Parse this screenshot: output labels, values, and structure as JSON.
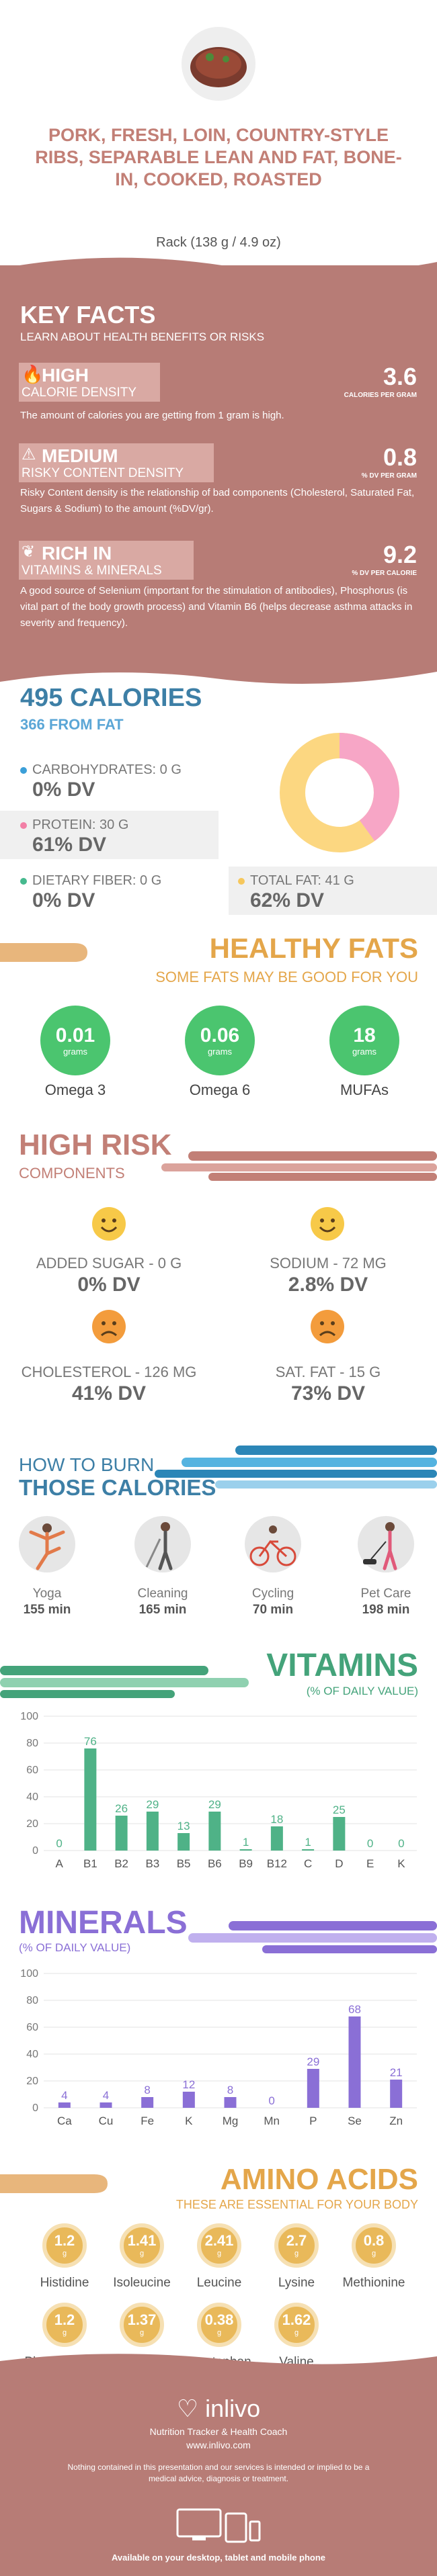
{
  "header": {
    "title": "PORK, FRESH, LOIN, COUNTRY-STYLE RIBS, SEPARABLE LEAN AND FAT, BONE-IN, COOKED, ROASTED",
    "serving": "Rack (138 g / 4.9 oz)"
  },
  "key_facts": {
    "title": "KEY FACTS",
    "subtitle": "LEARN ABOUT HEALTH BENEFITS OR RISKS",
    "items": [
      {
        "level": "HIGH",
        "category": "CALORIE DENSITY",
        "value": "3.6",
        "unit": "CALORIES PER GRAM",
        "description": "The amount of calories you are getting from 1 gram is high.",
        "icon": "fire-icon"
      },
      {
        "level": "MEDIUM",
        "category": "RISKY CONTENT DENSITY",
        "value": "0.8",
        "unit": "% DV PER GRAM",
        "description": "Risky Content density is the relationship of bad components (Cholesterol, Saturated Fat, Sugars & Sodium) to the amount (%DV/gr).",
        "icon": "warning-icon"
      },
      {
        "level": "RICH IN",
        "category": "VITAMINS & MINERALS",
        "value": "9.2",
        "unit": "% DV PER CALORIE",
        "description": "A good source of Selenium (important for the stimulation of antibodies), Phosphorus (is vital part of the body growth process) and Vitamin B6 (helps decrease asthma attacks in severity and frequency).",
        "icon": "leaf-icon"
      }
    ]
  },
  "calories": {
    "title": "495 CALORIES",
    "from_fat": "366 FROM FAT",
    "macros": [
      {
        "label": "CARBOHYDRATES: 0 g",
        "dv": "0% DV",
        "color": "#3b9fd8"
      },
      {
        "label": "PROTEIN: 30 g",
        "dv": "61% DV",
        "color": "#f27fa6"
      },
      {
        "label": "DIETARY FIBER: 0 g",
        "dv": "0% DV",
        "color": "#46b98e"
      },
      {
        "label": "TOTAL FAT: 41 g",
        "dv": "62% DV",
        "color": "#f6c75c"
      }
    ],
    "donut": {
      "protein_color": "#f7a6c6",
      "fat_color": "#fcd781",
      "protein_fraction": 0.4,
      "fat_fraction": 0.6
    }
  },
  "healthy_fats": {
    "title": "HEALTHY FATS",
    "subtitle": "SOME FATS MAY BE GOOD FOR YOU",
    "items": [
      {
        "value": "0.01",
        "unit": "grams",
        "name": "Omega 3"
      },
      {
        "value": "0.06",
        "unit": "grams",
        "name": "Omega 6"
      },
      {
        "value": "18",
        "unit": "grams",
        "name": "MUFAs"
      }
    ]
  },
  "high_risk": {
    "title": "HIGH RISK",
    "subtitle": "COMPONENTS",
    "items": [
      {
        "label": "ADDED SUGAR - 0 g",
        "dv": "0% DV",
        "mood": "happy"
      },
      {
        "label": "SODIUM - 72 mg",
        "dv": "2.8% DV",
        "mood": "happy"
      },
      {
        "label": "CHOLESTEROL - 126 mg",
        "dv": "41% DV",
        "mood": "sad"
      },
      {
        "label": "SAT. FAT - 15 g",
        "dv": "73% DV",
        "mood": "sad"
      }
    ]
  },
  "burn": {
    "title_line1": "HOW TO BURN",
    "title_line2": "THOSE CALORIES",
    "activities": [
      {
        "name": "Yoga",
        "minutes": "155 min",
        "icon": "yoga-icon"
      },
      {
        "name": "Cleaning",
        "minutes": "165 min",
        "icon": "cleaning-icon"
      },
      {
        "name": "Cycling",
        "minutes": "70 min",
        "icon": "cycling-icon"
      },
      {
        "name": "Pet Care",
        "minutes": "198 min",
        "icon": "pet-care-icon"
      }
    ]
  },
  "vitamins": {
    "title": "VITAMINS",
    "subtitle": "(% OF DAILY VALUE)"
  },
  "minerals": {
    "title": "MINERALS",
    "subtitle": "(% OF DAILY VALUE)"
  },
  "chart_data": [
    {
      "type": "bar",
      "categories": [
        "A",
        "B1",
        "B2",
        "B3",
        "B5",
        "B6",
        "B9",
        "B12",
        "C",
        "D",
        "E",
        "K"
      ],
      "values": [
        0,
        76,
        26,
        29,
        13,
        29,
        1,
        18,
        1,
        25,
        0,
        0
      ],
      "title": "VITAMINS",
      "subtitle": "(% OF DAILY VALUE)",
      "ylim": [
        0,
        100
      ],
      "yticks": [
        0,
        20,
        40,
        60,
        80,
        100
      ],
      "color": "#4fb287",
      "grid": true
    },
    {
      "type": "bar",
      "categories": [
        "Ca",
        "Cu",
        "Fe",
        "K",
        "Mg",
        "Mn",
        "P",
        "Se",
        "Zn"
      ],
      "values": [
        4,
        4,
        8,
        12,
        8,
        0,
        29,
        68,
        21
      ],
      "title": "MINERALS",
      "subtitle": "(% OF DAILY VALUE)",
      "ylim": [
        0,
        100
      ],
      "yticks": [
        0,
        20,
        40,
        60,
        80,
        100
      ],
      "color": "#8a6fd6",
      "grid": true
    }
  ],
  "amino_acids": {
    "title": "AMINO ACIDS",
    "subtitle": "THESE ARE ESSENTIAL FOR YOUR BODY",
    "items": [
      {
        "value": "1.2",
        "unit": "g",
        "name": "Histidine"
      },
      {
        "value": "1.41",
        "unit": "g",
        "name": "Isoleucine"
      },
      {
        "value": "2.41",
        "unit": "g",
        "name": "Leucine"
      },
      {
        "value": "2.7",
        "unit": "g",
        "name": "Lysine"
      },
      {
        "value": "0.8",
        "unit": "g",
        "name": "Methionine"
      },
      {
        "value": "1.2",
        "unit": "g",
        "name": "Phenylalanine"
      },
      {
        "value": "1.37",
        "unit": "g",
        "name": "Threonine"
      },
      {
        "value": "0.38",
        "unit": "g",
        "name": "Tryptophan"
      },
      {
        "value": "1.62",
        "unit": "g",
        "name": "Valine"
      }
    ]
  },
  "footer": {
    "brand": "inlivo",
    "tagline": "Nutrition Tracker & Health Coach",
    "url": "www.inlivo.com",
    "disclaimer": "Nothing contained in this presentation and our services is intended or implied to be a medical advice, diagnosis or treatment.",
    "availability": "Available on your desktop, tablet and mobile phone"
  }
}
